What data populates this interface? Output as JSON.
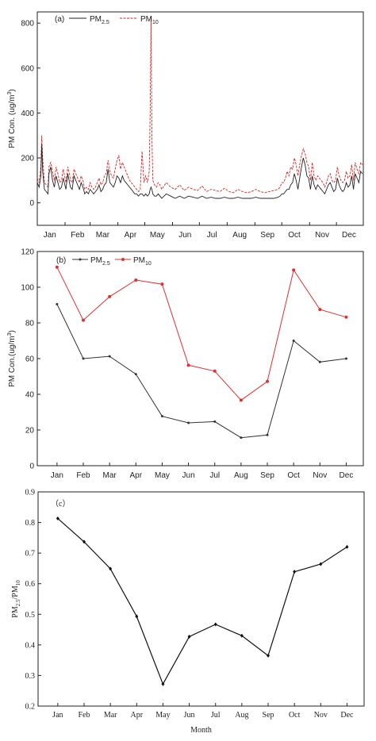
{
  "chart_data": [
    {
      "panel_label": "(a)",
      "type": "line",
      "ylabel": "PM Con. (ug/m^3)",
      "ylim": [
        -100,
        850
      ],
      "yticks": [
        "0",
        "200",
        "400",
        "600",
        "800"
      ],
      "ytick_values": [
        0,
        200,
        400,
        600,
        800
      ],
      "xticks": [
        "Jan",
        "Feb",
        "Mar",
        "Apr",
        "May",
        "Jun",
        "Jul",
        "Aug",
        "Sep",
        "Oct",
        "Nov",
        "Dec"
      ],
      "grid": false,
      "legend_position": "top-left",
      "series": [
        {
          "name": "PM2.5",
          "name_base": "PM",
          "name_sub": "2.5",
          "color": "#222222",
          "dash": "solid",
          "days": [
            1,
            3,
            5,
            6,
            7,
            9,
            11,
            13,
            14,
            16,
            18,
            20,
            22,
            24,
            26,
            28,
            30,
            33,
            35,
            37,
            38,
            40,
            42,
            44,
            46,
            48,
            50,
            52,
            54,
            56,
            58,
            60,
            62,
            64,
            66,
            68,
            70,
            72,
            74,
            76,
            78,
            80,
            82,
            84,
            86,
            88,
            90,
            92,
            94,
            96,
            98,
            100,
            102,
            104,
            106,
            108,
            110,
            112,
            114,
            116,
            118,
            120,
            122,
            124,
            126,
            127,
            128,
            129,
            130,
            132,
            134,
            136,
            138,
            140,
            145,
            150,
            155,
            160,
            165,
            170,
            175,
            180,
            185,
            190,
            195,
            200,
            205,
            210,
            215,
            220,
            225,
            230,
            235,
            240,
            245,
            250,
            255,
            260,
            265,
            270,
            272,
            274,
            276,
            278,
            280,
            282,
            284,
            286,
            288,
            290,
            292,
            294,
            296,
            298,
            300,
            302,
            304,
            306,
            308,
            310,
            312,
            314,
            316,
            318,
            320,
            322,
            324,
            326,
            328,
            330,
            332,
            334,
            336,
            338,
            340,
            342,
            344,
            346,
            348,
            350,
            352,
            354,
            356,
            358,
            360,
            362,
            364
          ],
          "values": [
            90,
            70,
            120,
            260,
            140,
            60,
            50,
            40,
            130,
            160,
            100,
            70,
            120,
            90,
            60,
            70,
            110,
            60,
            130,
            90,
            70,
            60,
            120,
            100,
            80,
            60,
            90,
            70,
            40,
            50,
            40,
            60,
            50,
            40,
            50,
            60,
            80,
            50,
            60,
            80,
            90,
            150,
            90,
            80,
            70,
            90,
            120,
            110,
            90,
            120,
            100,
            90,
            80,
            70,
            60,
            50,
            40,
            40,
            30,
            40,
            40,
            30,
            40,
            30,
            40,
            60,
            70,
            60,
            40,
            30,
            30,
            40,
            30,
            20,
            40,
            30,
            20,
            30,
            20,
            30,
            25,
            20,
            30,
            20,
            25,
            20,
            20,
            25,
            20,
            20,
            25,
            20,
            20,
            20,
            25,
            20,
            20,
            20,
            20,
            25,
            30,
            40,
            40,
            50,
            60,
            60,
            80,
            90,
            130,
            100,
            60,
            110,
            160,
            200,
            170,
            120,
            110,
            60,
            120,
            80,
            60,
            80,
            70,
            60,
            50,
            40,
            60,
            80,
            90,
            70,
            50,
            60,
            110,
            80,
            60,
            50,
            60,
            90,
            70,
            80,
            120,
            60,
            130,
            110,
            90,
            140,
            130
          ]
        },
        {
          "name": "PM10",
          "name_base": "PM",
          "name_sub": "10",
          "color": "#dd2222",
          "dash": "dashed",
          "days": [
            1,
            3,
            5,
            6,
            7,
            9,
            11,
            13,
            14,
            16,
            18,
            20,
            22,
            24,
            26,
            28,
            30,
            33,
            35,
            37,
            38,
            40,
            42,
            44,
            46,
            48,
            50,
            52,
            54,
            56,
            58,
            60,
            62,
            64,
            66,
            68,
            70,
            72,
            74,
            76,
            78,
            80,
            82,
            84,
            86,
            88,
            90,
            92,
            94,
            96,
            98,
            100,
            102,
            104,
            106,
            108,
            110,
            112,
            114,
            116,
            118,
            120,
            122,
            124,
            126,
            127,
            128,
            129,
            130,
            132,
            134,
            136,
            138,
            140,
            145,
            150,
            155,
            160,
            165,
            170,
            175,
            180,
            185,
            190,
            195,
            200,
            205,
            210,
            215,
            220,
            225,
            230,
            235,
            240,
            245,
            250,
            255,
            260,
            265,
            270,
            272,
            274,
            276,
            278,
            280,
            282,
            284,
            286,
            288,
            290,
            292,
            294,
            296,
            298,
            300,
            302,
            304,
            306,
            308,
            310,
            312,
            314,
            316,
            318,
            320,
            322,
            324,
            326,
            328,
            330,
            332,
            334,
            336,
            338,
            340,
            342,
            344,
            346,
            348,
            350,
            352,
            354,
            356,
            358,
            360,
            362,
            364
          ],
          "values": [
            110,
            90,
            160,
            300,
            200,
            90,
            80,
            70,
            160,
            180,
            140,
            100,
            160,
            130,
            90,
            100,
            150,
            90,
            160,
            130,
            100,
            90,
            150,
            130,
            110,
            90,
            120,
            100,
            60,
            70,
            60,
            90,
            70,
            60,
            70,
            90,
            110,
            80,
            90,
            120,
            130,
            190,
            140,
            120,
            110,
            150,
            190,
            210,
            150,
            180,
            160,
            140,
            120,
            100,
            90,
            80,
            70,
            60,
            50,
            60,
            230,
            90,
            120,
            90,
            140,
            400,
            830,
            300,
            100,
            80,
            70,
            90,
            80,
            60,
            90,
            70,
            60,
            80,
            55,
            70,
            60,
            55,
            75,
            50,
            60,
            55,
            50,
            65,
            50,
            45,
            60,
            50,
            45,
            50,
            60,
            50,
            45,
            50,
            55,
            60,
            70,
            90,
            90,
            110,
            140,
            120,
            160,
            150,
            200,
            170,
            120,
            170,
            210,
            240,
            220,
            180,
            160,
            100,
            180,
            120,
            100,
            120,
            110,
            100,
            90,
            70,
            90,
            120,
            130,
            100,
            90,
            100,
            160,
            120,
            100,
            90,
            100,
            140,
            110,
            120,
            170,
            100,
            180,
            150,
            130,
            180,
            170
          ]
        }
      ]
    },
    {
      "panel_label": "(b)",
      "type": "line",
      "ylabel": "PM Con.(ug/m^3)",
      "ylim": [
        0,
        120
      ],
      "yticks": [
        "0",
        "20",
        "40",
        "60",
        "80",
        "100",
        "120"
      ],
      "ytick_values": [
        0,
        20,
        40,
        60,
        80,
        100,
        120
      ],
      "categories": [
        "Jan",
        "Feb",
        "Mar",
        "Apr",
        "May",
        "Jun",
        "Jul",
        "Aug",
        "Sep",
        "Oct",
        "Nov",
        "Dec"
      ],
      "grid": false,
      "legend_position": "top-left",
      "series": [
        {
          "name": "PM2.5",
          "name_base": "PM",
          "name_sub": "2.5",
          "color": "#333333",
          "values": [
            90.5,
            60,
            61.3,
            51.3,
            27.7,
            24,
            24.7,
            15.7,
            17.2,
            70,
            58.1,
            60
          ]
        },
        {
          "name": "PM10",
          "name_base": "PM",
          "name_sub": "10",
          "color": "#e03030",
          "values": [
            111.2,
            81.5,
            94.7,
            104,
            101.7,
            56.3,
            53,
            36.7,
            47.2,
            109.6,
            87.5,
            83.2
          ]
        }
      ]
    },
    {
      "panel_label": "（c）",
      "type": "line",
      "xlabel": "Month",
      "ylabel": "PM2.5/PM10",
      "ylabel_parts": [
        "PM",
        "2.5",
        "/PM",
        "10"
      ],
      "ylim": [
        0.2,
        0.9
      ],
      "yticks": [
        "0.2",
        "0.3",
        "0.4",
        "0.5",
        "0.6",
        "0.7",
        "0.8",
        "0.9"
      ],
      "ytick_values": [
        0.2,
        0.3,
        0.4,
        0.5,
        0.6,
        0.7,
        0.8,
        0.9
      ],
      "categories": [
        "Jan",
        "Feb",
        "Mar",
        "Apr",
        "May",
        "Jun",
        "Jul",
        "Aug",
        "Sep",
        "Oct",
        "Nov",
        "Dec"
      ],
      "grid": false,
      "series": [
        {
          "color": "#111111",
          "values": [
            0.813,
            0.737,
            0.649,
            0.493,
            0.272,
            0.427,
            0.467,
            0.43,
            0.365,
            0.639,
            0.664,
            0.72
          ]
        }
      ]
    }
  ]
}
